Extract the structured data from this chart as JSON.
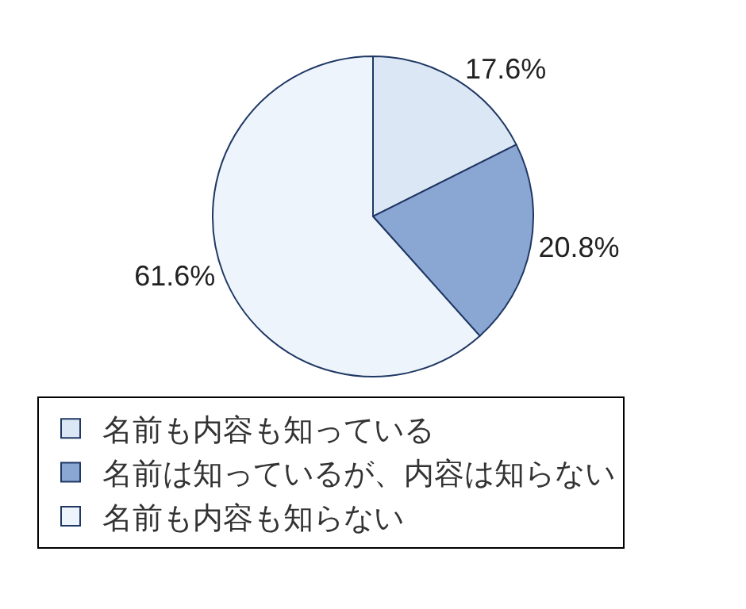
{
  "chart_data": {
    "type": "pie",
    "categories": [
      "名前も内容も知っている",
      "名前は知っているが、内容は知らない",
      "名前も内容も知らない"
    ],
    "values": [
      17.6,
      20.8,
      61.6
    ],
    "colors": [
      "#dce7f5",
      "#8aa6d2",
      "#eef4fb"
    ],
    "value_labels": [
      "17.6%",
      "20.8%",
      "61.6%"
    ],
    "legend": "bottom"
  }
}
